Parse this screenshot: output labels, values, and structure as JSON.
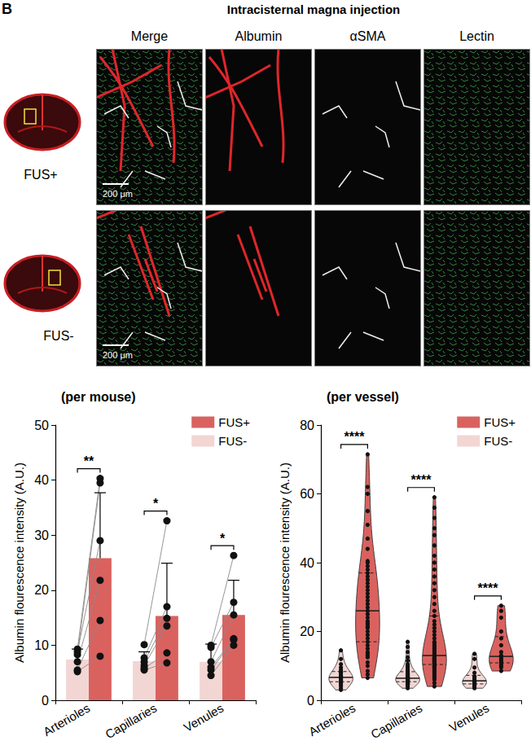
{
  "panel_label": "B",
  "header": {
    "title": "Intracisternal magna injection",
    "columns": [
      "Merge",
      "Albumin",
      "αSMA",
      "Lectin"
    ],
    "rows": [
      {
        "label": "FUS+",
        "scale_bar": "200 μm"
      },
      {
        "label": "FUS-",
        "scale_bar": "200 μm"
      }
    ]
  },
  "chart_data": [
    {
      "type": "bar",
      "title": "(per mouse)",
      "ylabel": "Albumin flourescence intensity (A.U.)",
      "categories": [
        "Arterioles",
        "Capillaries",
        "Venules"
      ],
      "series": [
        {
          "name": "FUS-",
          "color": "#f2d6d3",
          "values": [
            7.4,
            7.1,
            7.0
          ],
          "errors": [
            1.9,
            1.7,
            3.2
          ],
          "points": [
            [
              9.3,
              8.3,
              8.8,
              7.0,
              5.5,
              5.2
            ],
            [
              10.1,
              7.7,
              7.0,
              6.3,
              5.8,
              5.5
            ],
            [
              10.0,
              9.6,
              7.0,
              6.0,
              5.5,
              4.5
            ]
          ]
        },
        {
          "name": "FUS+",
          "color": "#d9625f",
          "values": [
            25.8,
            15.3,
            15.5
          ],
          "errors": [
            11.9,
            9.6,
            6.3
          ],
          "points": [
            [
              40.3,
              39.5,
              29.0,
              21.8,
              14.5,
              8.0
            ],
            [
              32.6,
              17.0,
              14.9,
              13.5,
              8.6,
              6.8
            ],
            [
              26.3,
              17.8,
              15.5,
              11.2,
              11.0,
              10.0
            ]
          ]
        }
      ],
      "annotations": [
        {
          "category": "Arterioles",
          "text": "**"
        },
        {
          "category": "Capillaries",
          "text": "*"
        },
        {
          "category": "Venules",
          "text": "*"
        }
      ],
      "ylim": [
        0,
        50
      ],
      "yticks": [
        0,
        10,
        20,
        30,
        40,
        50
      ],
      "legend": "upper right",
      "grid": false
    },
    {
      "type": "violin",
      "title": "(per vessel)",
      "ylabel": "Albumin flourescence intensity (A.U.)",
      "categories": [
        "Arterioles",
        "Capillaries",
        "Venules"
      ],
      "series": [
        {
          "name": "FUS-",
          "color": "#f2d6d3",
          "points": [
            [
              3.0,
              3.5,
              4.2,
              4.8,
              5.0,
              5.5,
              5.8,
              6.0,
              6.2,
              6.5,
              6.8,
              7.0,
              7.3,
              7.8,
              8.2,
              8.8,
              9.5,
              10.5,
              12.0,
              14.5
            ],
            [
              3.5,
              4.0,
              4.3,
              4.5,
              4.7,
              4.9,
              5.0,
              5.1,
              5.2,
              5.3,
              5.4,
              5.5,
              5.6,
              5.7,
              5.8,
              5.9,
              6.0,
              6.1,
              6.2,
              6.3,
              6.4,
              6.5,
              6.6,
              6.8,
              7.0,
              7.2,
              7.4,
              7.6,
              7.8,
              8.0,
              8.3,
              8.6,
              9.0,
              9.5,
              10.0,
              10.5,
              11.5,
              12.5,
              14.0,
              15.5,
              17.0
            ],
            [
              3.5,
              4.0,
              4.3,
              4.6,
              4.8,
              5.0,
              5.2,
              5.5,
              5.8,
              6.0,
              6.5,
              7.0,
              8.0,
              9.5,
              12.0,
              13.5
            ]
          ]
        },
        {
          "name": "FUS+",
          "color": "#d9625f",
          "points": [
            [
              6.5,
              7.5,
              8.5,
              10.0,
              11.0,
              12.5,
              13.0,
              13.5,
              14.0,
              15.0,
              16.0,
              17.0,
              18.0,
              19.0,
              20.0,
              21.0,
              21.5,
              22.0,
              22.5,
              23.0,
              24.0,
              25.0,
              26.0,
              27.0,
              28.0,
              29.0,
              30.0,
              31.0,
              32.0,
              33.0,
              34.0,
              35.0,
              36.0,
              37.0,
              38.0,
              39.0,
              40.0,
              40.5,
              44.0,
              47.0,
              51.0,
              55.0,
              60.0,
              62.0,
              71.5
            ],
            [
              4.0,
              5.0,
              6.0,
              6.5,
              7.0,
              7.5,
              8.0,
              8.3,
              8.6,
              9.0,
              9.3,
              9.6,
              9.8,
              10.0,
              10.2,
              10.4,
              10.5,
              10.8,
              11.0,
              11.1,
              11.2,
              11.4,
              11.5,
              11.7,
              11.8,
              12.0,
              12.1,
              12.2,
              12.5,
              12.8,
              13.0,
              13.5,
              14.0,
              14.5,
              15.0,
              15.5,
              16.0,
              16.5,
              17.0,
              18.0,
              19.0,
              20.0,
              21.0,
              22.0,
              23.0,
              24.5,
              26.0,
              28.0,
              30.0,
              32.0,
              34.0,
              36.0,
              38.0,
              40.0,
              42.0,
              45.0,
              48.0,
              50.0,
              53.0,
              56.0,
              59.0
            ],
            [
              8.5,
              9.5,
              10.0,
              10.5,
              11.0,
              11.5,
              12.0,
              12.5,
              13.0,
              14.0,
              16.0,
              18.0,
              20.0,
              24.0,
              26.0,
              27.5
            ]
          ]
        }
      ],
      "annotations": [
        {
          "category": "Arterioles",
          "text": "****"
        },
        {
          "category": "Capillaries",
          "text": "****"
        },
        {
          "category": "Venules",
          "text": "****"
        }
      ],
      "ylim": [
        0,
        80
      ],
      "yticks": [
        0,
        20,
        40,
        60,
        80
      ],
      "legend": "upper right",
      "grid": false
    }
  ]
}
